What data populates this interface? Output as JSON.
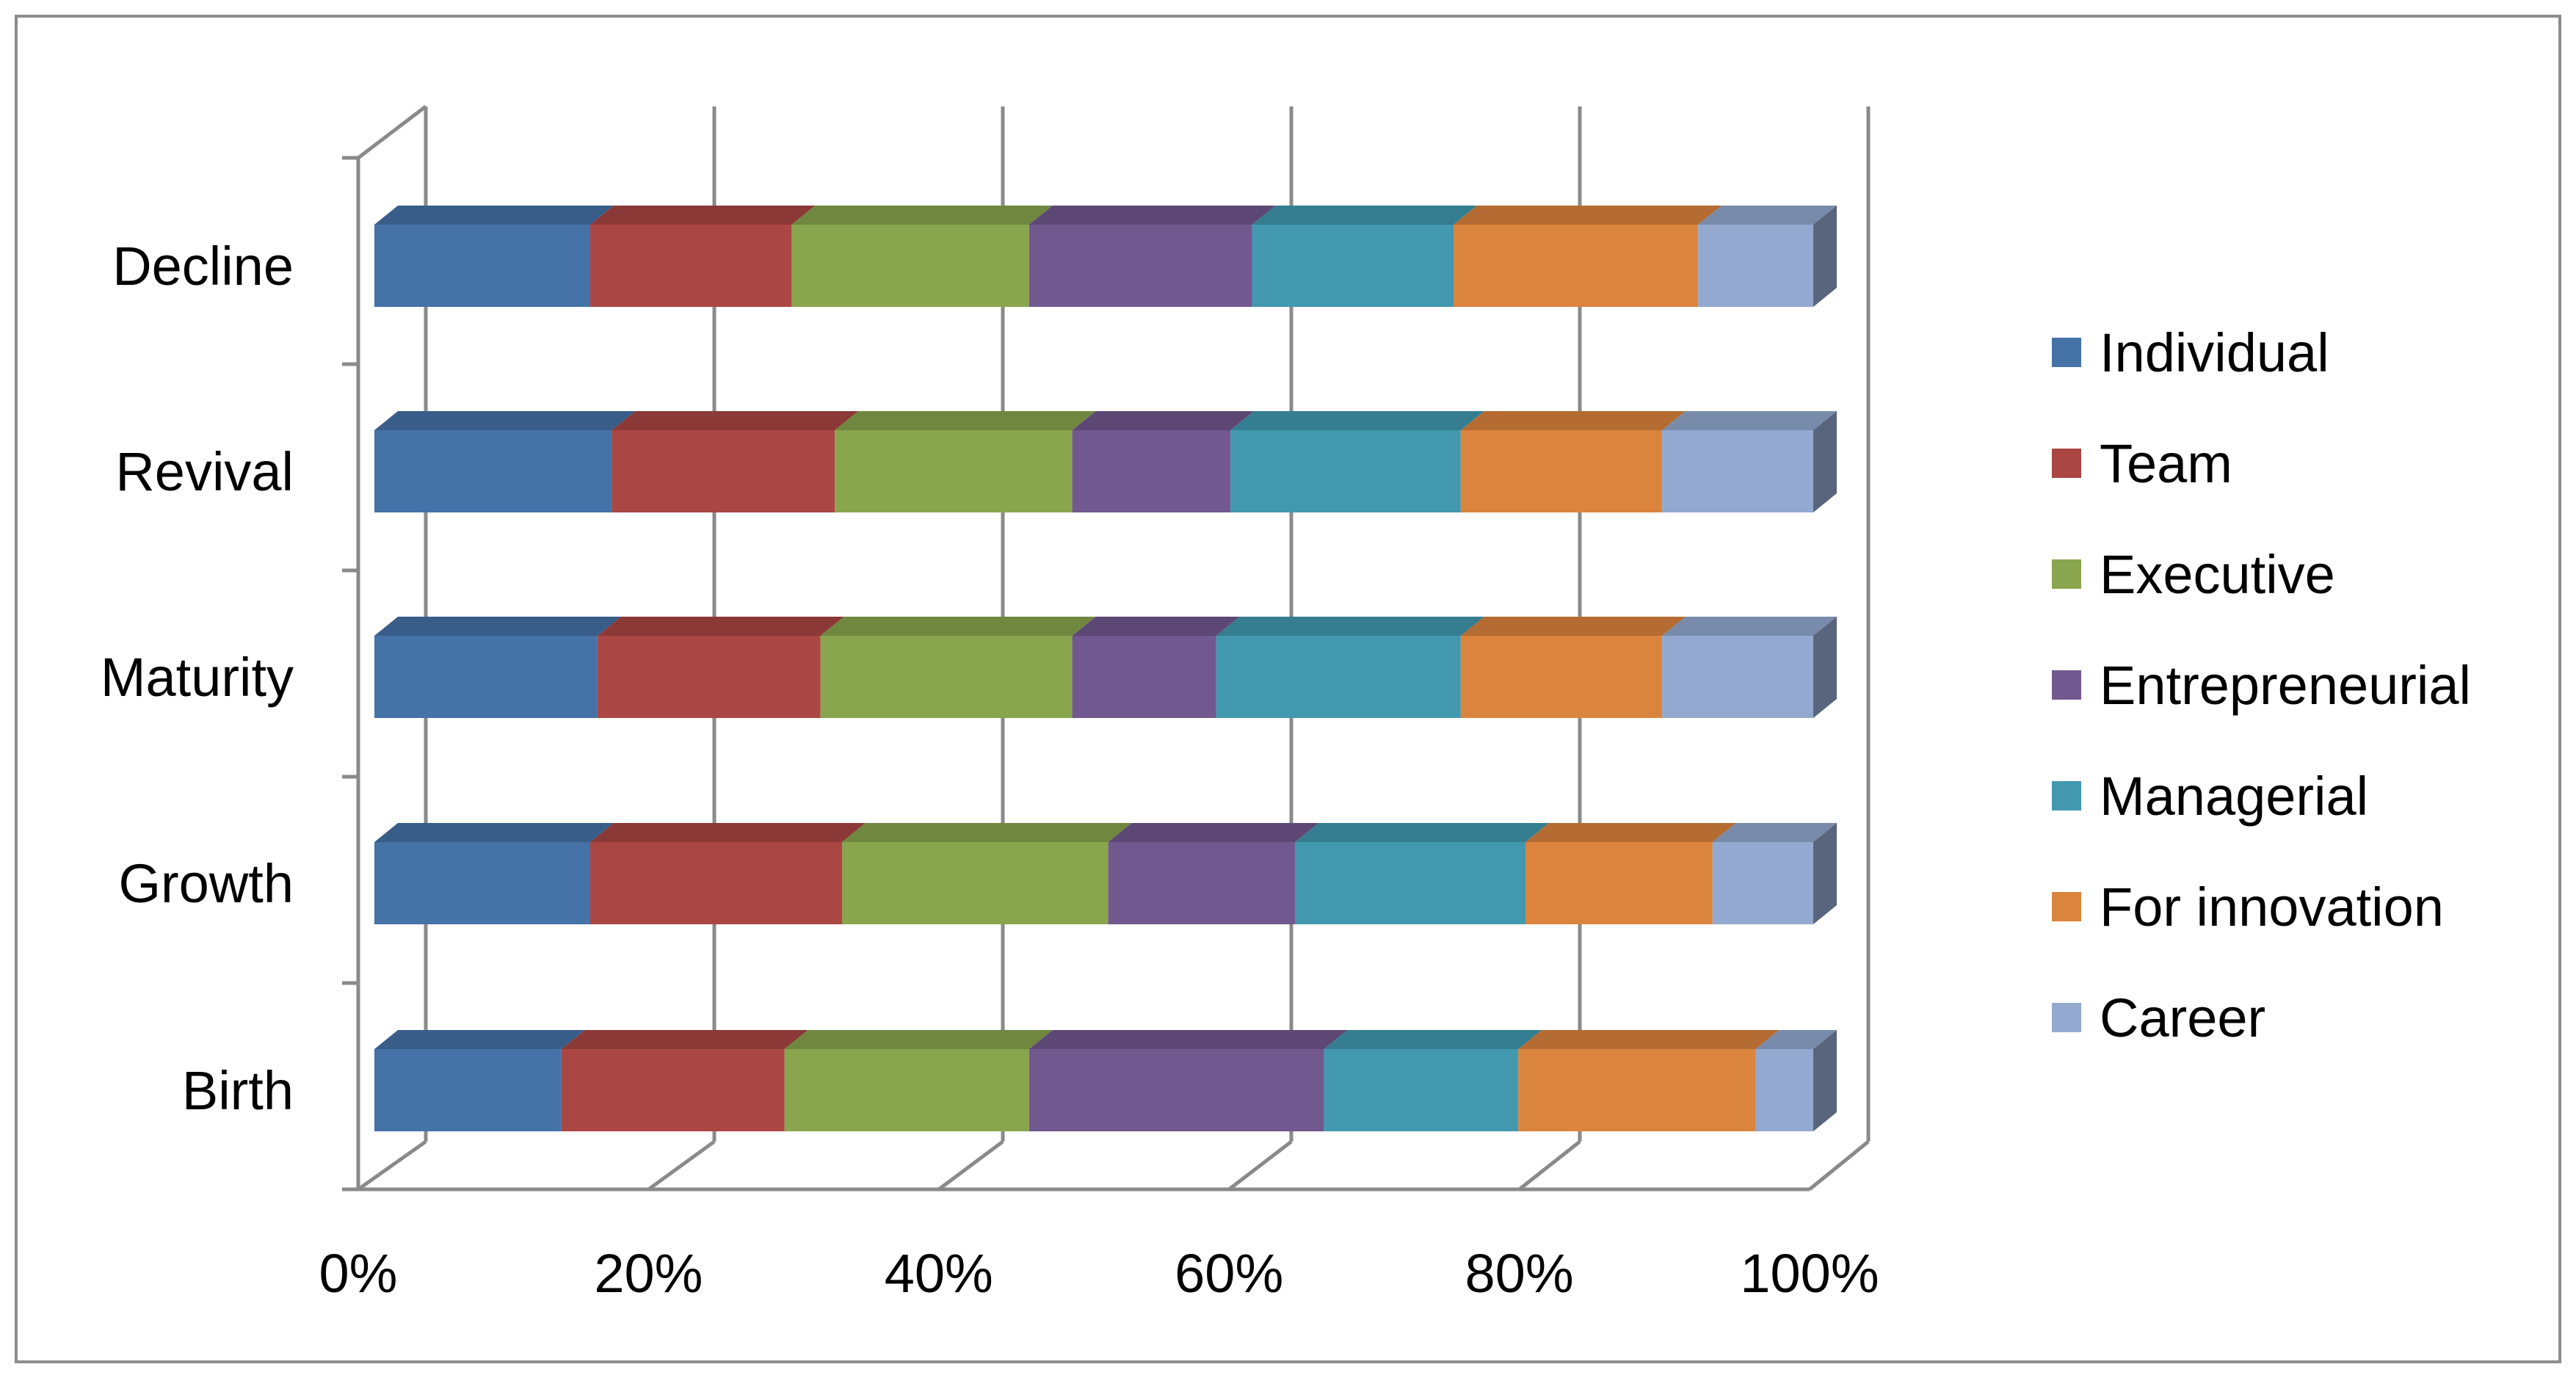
{
  "chart_data": {
    "type": "bar",
    "orientation": "horizontal",
    "stacked": "percent",
    "three_d": true,
    "categories": [
      "Birth",
      "Growth",
      "Maturity",
      "Revival",
      "Decline"
    ],
    "series": [
      {
        "name": "Individual",
        "color": "#4572A7",
        "values": [
          13,
          15,
          15.5,
          16.5,
          15
        ]
      },
      {
        "name": "Team",
        "color": "#AA4643",
        "values": [
          15.5,
          17.5,
          15.5,
          15.5,
          14
        ]
      },
      {
        "name": "Executive",
        "color": "#89A54E",
        "values": [
          17,
          18.5,
          17.5,
          16.5,
          16.5
        ]
      },
      {
        "name": "Entrepreneurial",
        "color": "#71588F",
        "values": [
          20.5,
          13,
          10,
          11,
          15.5
        ]
      },
      {
        "name": "Managerial",
        "color": "#4198AF",
        "values": [
          13.5,
          16,
          17,
          16,
          14
        ]
      },
      {
        "name": "For innovation",
        "color": "#DB843D",
        "values": [
          16.5,
          13,
          14,
          14,
          17
        ]
      },
      {
        "name": "Career",
        "color": "#93A9CF",
        "values": [
          4,
          7,
          10.5,
          10.5,
          8
        ]
      }
    ],
    "x_ticks": [
      "0%",
      "20%",
      "40%",
      "60%",
      "80%",
      "100%"
    ],
    "xlim": [
      0,
      100
    ],
    "grid": true,
    "legend_position": "right",
    "title": "",
    "xlabel": "",
    "ylabel": ""
  }
}
